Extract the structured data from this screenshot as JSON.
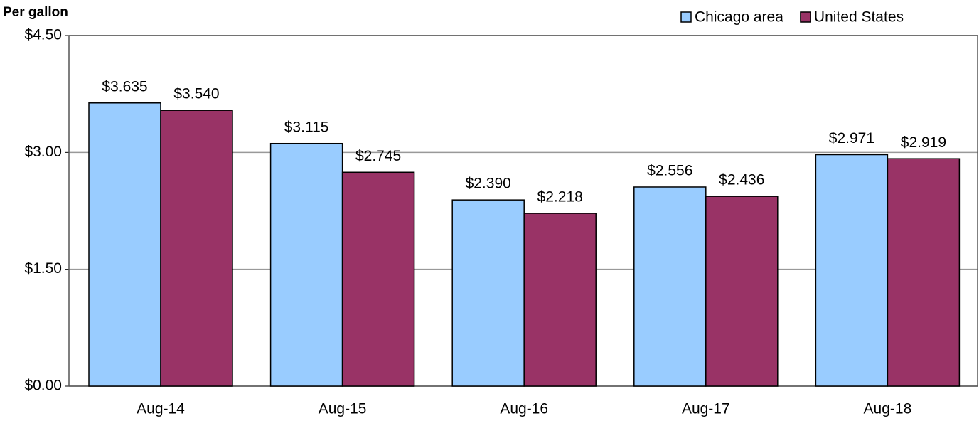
{
  "chart_data": {
    "type": "bar",
    "title": "Per gallon",
    "categories": [
      "Aug-14",
      "Aug-15",
      "Aug-16",
      "Aug-17",
      "Aug-18"
    ],
    "series": [
      {
        "name": "Chicago area",
        "color": "#99ccff",
        "values": [
          3.635,
          3.115,
          2.39,
          2.556,
          2.971
        ],
        "value_labels": [
          "$3.635",
          "$3.115",
          "$2.390",
          "$2.556",
          "$2.971"
        ]
      },
      {
        "name": "United States",
        "color": "#993366",
        "values": [
          3.54,
          2.745,
          2.218,
          2.436,
          2.919
        ],
        "value_labels": [
          "$3.540",
          "$2.745",
          "$2.218",
          "$2.436",
          "$2.919"
        ]
      }
    ],
    "ylim": [
      0,
      4.5
    ],
    "yticks": [
      {
        "value": 0,
        "label": "$0.00"
      },
      {
        "value": 1.5,
        "label": "$1.50"
      },
      {
        "value": 3,
        "label": "$3.00"
      },
      {
        "value": 4.5,
        "label": "$4.50"
      }
    ],
    "grid": true,
    "legend": "top-right"
  }
}
